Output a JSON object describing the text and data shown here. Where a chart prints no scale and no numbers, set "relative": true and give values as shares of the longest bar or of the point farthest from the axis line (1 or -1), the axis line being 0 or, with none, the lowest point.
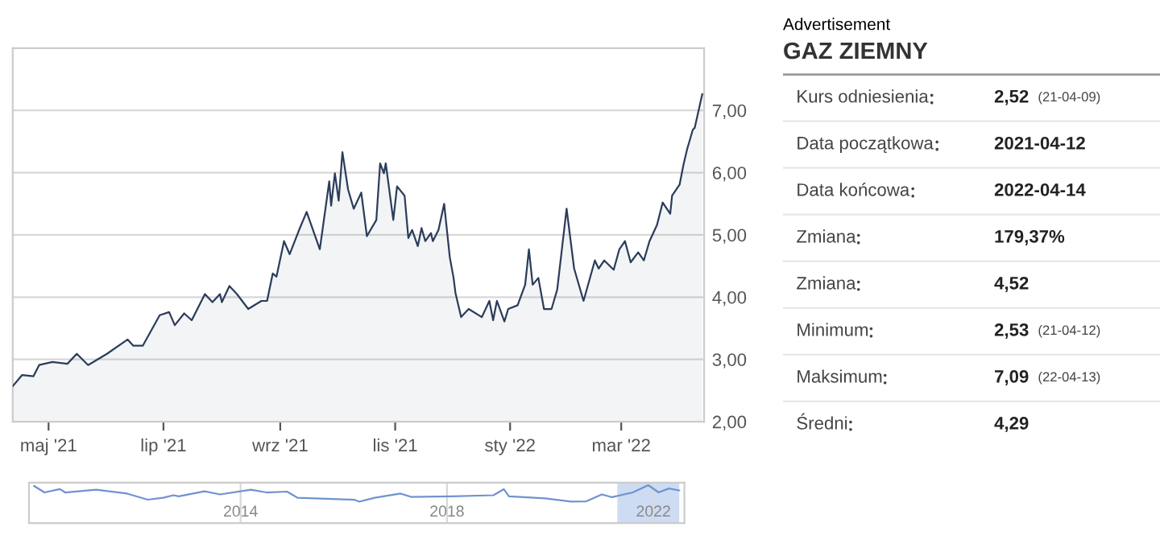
{
  "chart_data": [
    {
      "type": "area",
      "x": [
        "2021-04-12",
        "2021-04-17",
        "2021-04-23",
        "2021-04-26",
        "2021-05-03",
        "2021-05-11",
        "2021-05-16",
        "2021-05-22",
        "2021-06-01",
        "2021-06-12",
        "2021-06-15",
        "2021-06-20",
        "2021-06-29",
        "2021-07-04",
        "2021-07-07",
        "2021-07-12",
        "2021-07-16",
        "2021-07-23",
        "2021-07-27",
        "2021-07-31",
        "2021-08-01",
        "2021-08-05",
        "2021-08-09",
        "2021-08-15",
        "2021-08-22",
        "2021-08-25",
        "2021-08-28",
        "2021-08-30",
        "2021-09-03",
        "2021-09-06",
        "2021-09-11",
        "2021-09-15",
        "2021-09-22",
        "2021-09-27",
        "2021-09-28",
        "2021-09-30",
        "2021-10-02",
        "2021-10-04",
        "2021-10-07",
        "2021-10-10",
        "2021-10-14",
        "2021-10-17",
        "2021-10-22",
        "2021-10-24",
        "2021-10-26",
        "2021-10-27",
        "2021-10-31",
        "2021-11-02",
        "2021-11-06",
        "2021-11-08",
        "2021-11-10",
        "2021-11-13",
        "2021-11-15",
        "2021-11-17",
        "2021-11-20",
        "2021-11-21",
        "2021-11-24",
        "2021-11-27",
        "2021-11-30",
        "2021-12-02",
        "2021-12-03",
        "2021-12-06",
        "2021-12-10",
        "2021-12-17",
        "2021-12-21",
        "2021-12-23",
        "2021-12-25",
        "2021-12-29",
        "2021-12-31",
        "2022-01-05",
        "2022-01-09",
        "2022-01-11",
        "2022-01-13",
        "2022-01-16",
        "2022-01-19",
        "2022-01-23",
        "2022-01-26",
        "2022-01-29",
        "2022-01-31",
        "2022-02-04",
        "2022-02-09",
        "2022-02-15",
        "2022-02-17",
        "2022-02-20",
        "2022-02-25",
        "2022-02-28",
        "2022-03-03",
        "2022-03-06",
        "2022-03-10",
        "2022-03-13",
        "2022-03-16",
        "2022-03-20",
        "2022-03-23",
        "2022-03-27",
        "2022-03-28",
        "2022-04-01",
        "2022-04-03",
        "2022-04-05",
        "2022-04-08",
        "2022-04-09",
        "2022-04-13"
      ],
      "series": [
        {
          "color": "#2b3d5b",
          "values": [
            2.57,
            2.75,
            2.73,
            2.91,
            2.96,
            2.93,
            3.09,
            2.91,
            3.09,
            3.32,
            3.22,
            3.22,
            3.71,
            3.76,
            3.55,
            3.74,
            3.63,
            4.05,
            3.92,
            4.05,
            3.92,
            4.18,
            4.05,
            3.81,
            3.94,
            3.94,
            4.38,
            4.33,
            4.9,
            4.69,
            5.08,
            5.37,
            4.77,
            5.86,
            5.47,
            5.99,
            5.55,
            6.33,
            5.73,
            5.42,
            5.68,
            4.98,
            5.24,
            6.15,
            5.99,
            6.15,
            5.24,
            5.78,
            5.63,
            4.95,
            5.08,
            4.82,
            5.11,
            4.9,
            5.03,
            4.9,
            5.08,
            5.5,
            4.64,
            4.31,
            4.07,
            3.68,
            3.81,
            3.68,
            3.94,
            3.63,
            3.94,
            3.61,
            3.81,
            3.87,
            4.2,
            4.77,
            4.2,
            4.31,
            3.81,
            3.81,
            4.12,
            4.9,
            5.42,
            4.46,
            3.94,
            4.59,
            4.46,
            4.59,
            4.44,
            4.77,
            4.9,
            4.56,
            4.72,
            4.59,
            4.9,
            5.16,
            5.52,
            5.34,
            5.63,
            5.81,
            6.12,
            6.38,
            6.69,
            6.72,
            7.26
          ]
        }
      ],
      "xlim": [
        "2021-04-12",
        "2022-04-14"
      ],
      "xticks": [
        {
          "value": "2021-05-01",
          "label": "maj '21"
        },
        {
          "value": "2021-07-01",
          "label": "lip '21"
        },
        {
          "value": "2021-09-01",
          "label": "wrz '21"
        },
        {
          "value": "2021-11-01",
          "label": "lis '21"
        },
        {
          "value": "2022-01-01",
          "label": "sty '22"
        },
        {
          "value": "2022-03-01",
          "label": "mar '22"
        }
      ],
      "ylim": [
        2,
        8
      ],
      "yticks": [
        {
          "value": 2,
          "label": "2,00"
        },
        {
          "value": 3,
          "label": "3,00"
        },
        {
          "value": 4,
          "label": "4,00"
        },
        {
          "value": 5,
          "label": "5,00"
        },
        {
          "value": 6,
          "label": "6,00"
        },
        {
          "value": 7,
          "label": "7,00"
        }
      ],
      "grid": "y",
      "legend": false
    },
    {
      "type": "other",
      "subtitle": "Advertisement",
      "title": "GAZ ZIEMNY",
      "categories": [
        "Kurs odniesienia",
        "Data początkowa",
        "Data końcowa",
        "Zmiana",
        "Zmiana",
        "Minimum",
        "Maksimum",
        "Średni"
      ],
      "value_labels": [
        "2,52 (21-04-09)",
        "2021-04-12",
        "2022-04-14",
        "179,37%",
        "4,52",
        "2,53 (21-04-12)",
        "7,09 (22-04-13)",
        "4,29"
      ]
    },
    {
      "type": "line",
      "relative": true,
      "x": [
        2010.0,
        2010.2,
        2010.5,
        2010.6,
        2011.2,
        2011.8,
        2012.2,
        2012.5,
        2012.7,
        2012.8,
        2013.3,
        2013.6,
        2014.2,
        2014.5,
        2014.9,
        2015.1,
        2016.2,
        2016.3,
        2016.6,
        2017.1,
        2017.3,
        2018.1,
        2018.9,
        2019.1,
        2019.2,
        2019.9,
        2020.4,
        2020.7,
        2021.0,
        2021.2,
        2021.6,
        2021.9,
        2022.1,
        2022.3,
        2022.5
      ],
      "series": [
        {
          "color": "#6f93cf",
          "values": [
            0.95,
            0.56,
            0.76,
            0.56,
            0.73,
            0.49,
            0.12,
            0.24,
            0.39,
            0.32,
            0.63,
            0.44,
            0.73,
            0.56,
            0.61,
            0.24,
            0.12,
            0,
            0.24,
            0.49,
            0.29,
            0.32,
            0.39,
            0.76,
            0.32,
            0.2,
            0,
            0.02,
            0.44,
            0.27,
            0.56,
            1,
            0.56,
            0.8,
            0.68
          ]
        }
      ],
      "xlim": [
        2009.9,
        2022.6
      ],
      "xticks": [
        2014,
        2018,
        2022
      ],
      "bands": [
        {
          "axis": "x",
          "from": 2021.3,
          "to": 2022.5,
          "color": "#cddcf2"
        }
      ],
      "grid": "x",
      "tick_labels": "x"
    }
  ]
}
